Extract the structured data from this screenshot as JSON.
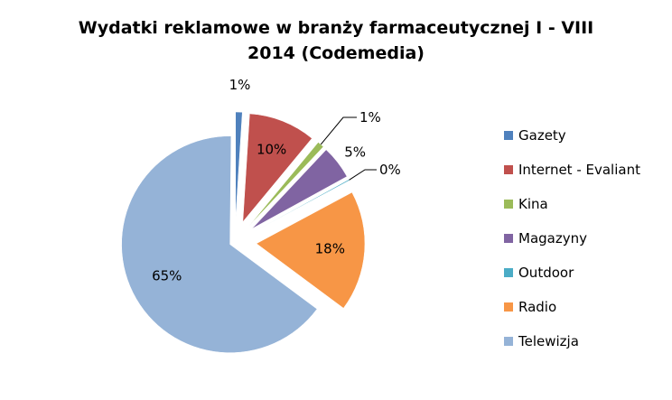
{
  "chart_data": {
    "type": "pie",
    "title_lines": [
      "Wydatki reklamowe w branży farmaceutycznej I - VIII",
      "2014 (Codemedia)"
    ],
    "slices": [
      {
        "label": "Gazety",
        "value": 1,
        "display": "1%",
        "color": "#4f81bd"
      },
      {
        "label": "Internet - Evaliant",
        "value": 10,
        "display": "10%",
        "color": "#c0504d"
      },
      {
        "label": "Kina",
        "value": 1,
        "display": "1%",
        "color": "#9bbb59"
      },
      {
        "label": "Magazyny",
        "value": 5,
        "display": "5%",
        "color": "#8064a2"
      },
      {
        "label": "Outdoor",
        "value": 0,
        "display": "0%",
        "color": "#4bacc6"
      },
      {
        "label": "Radio",
        "value": 18,
        "display": "18%",
        "color": "#f79646"
      },
      {
        "label": "Telewizja",
        "value": 65,
        "display": "65%",
        "color": "#95b3d7"
      }
    ],
    "legend_position": "right",
    "exploded": true
  }
}
